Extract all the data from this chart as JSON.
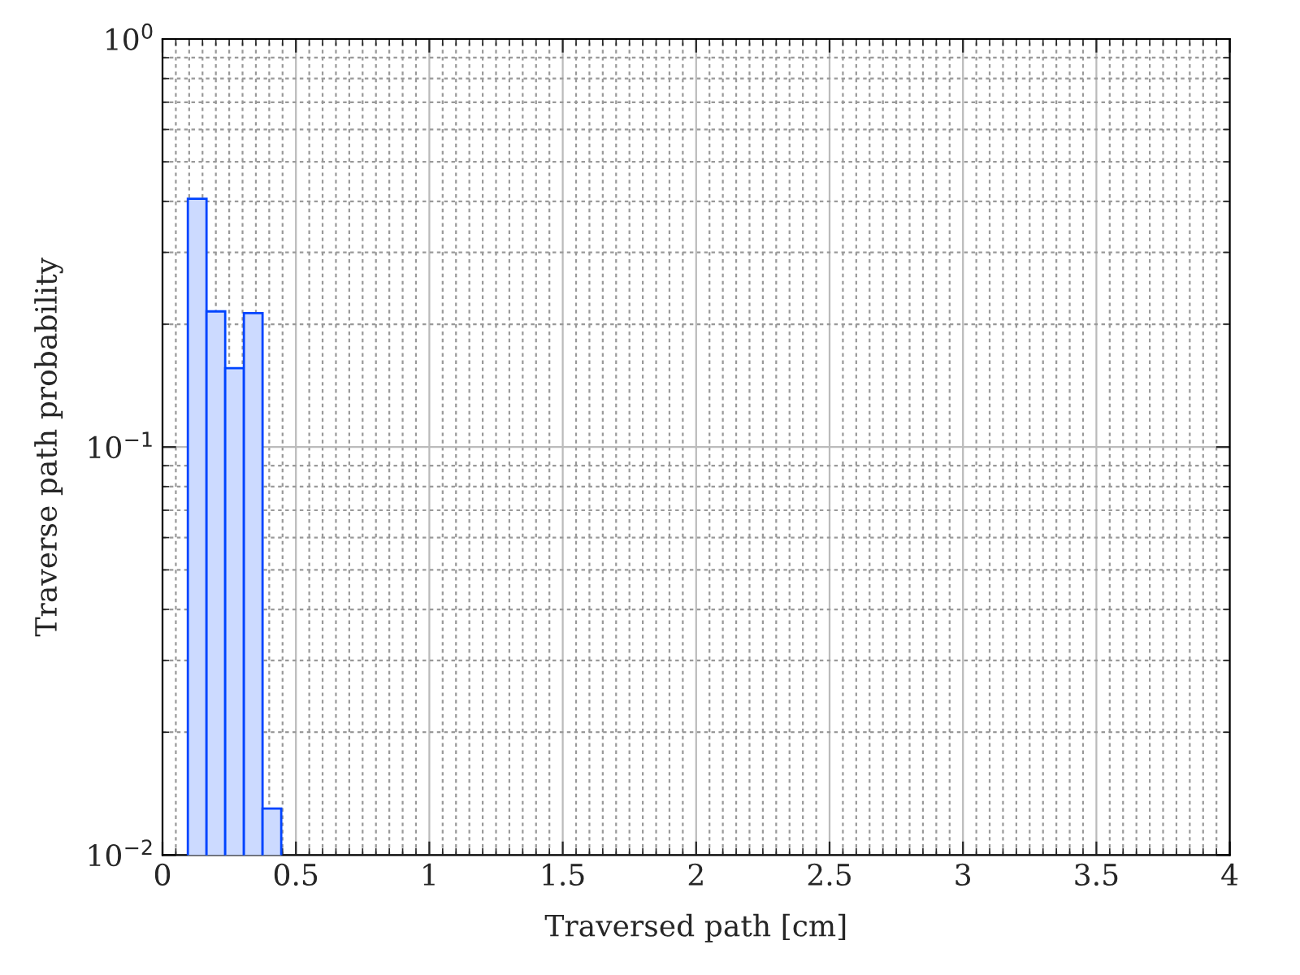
{
  "chart_data": {
    "type": "histogram",
    "xlabel": "Traversed path [cm]",
    "ylabel": "Traverse path probability",
    "bins": [
      0.095,
      0.165,
      0.235,
      0.305,
      0.375,
      0.445
    ],
    "values": [
      0.406,
      0.215,
      0.156,
      0.213,
      0.013
    ],
    "color": "#ccdaff",
    "xlim": [
      0,
      4
    ],
    "xticks": [
      0,
      0.5,
      1,
      1.5,
      2,
      2.5,
      3,
      3.5,
      4
    ],
    "log": true,
    "ylim": [
      0.01,
      1
    ],
    "yticks": [
      {
        "value": 0.01,
        "label": "10$^{−2}$"
      },
      {
        "value": 0.1,
        "label": "10$^{−1}$"
      },
      {
        "value": 1,
        "label": "10$^{0}$"
      }
    ],
    "grid": true
  }
}
